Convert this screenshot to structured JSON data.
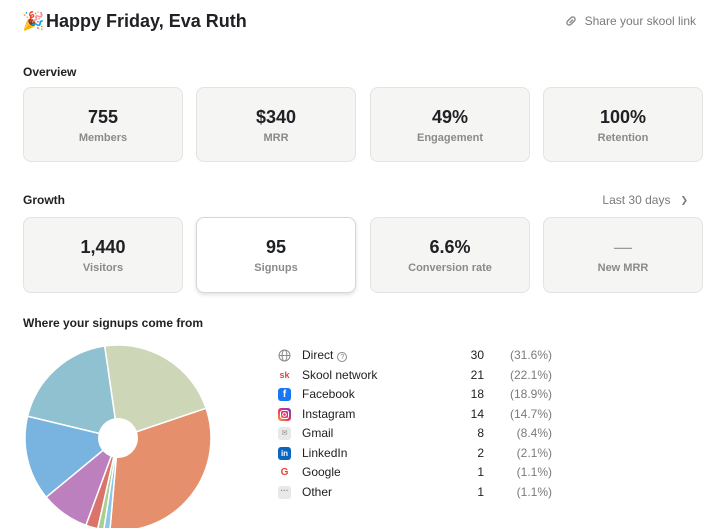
{
  "header": {
    "greeting": "Happy Friday, Eva Ruth",
    "share_link": "Share your skool link"
  },
  "overview": {
    "label": "Overview",
    "cards": [
      {
        "value": "755",
        "label": "Members"
      },
      {
        "value": "$340",
        "label": "MRR"
      },
      {
        "value": "49%",
        "label": "Engagement"
      },
      {
        "value": "100%",
        "label": "Retention"
      }
    ]
  },
  "growth": {
    "label": "Growth",
    "range": "Last 30 days",
    "cards": [
      {
        "value": "1,440",
        "label": "Visitors"
      },
      {
        "value": "95",
        "label": "Signups"
      },
      {
        "value": "6.6%",
        "label": "Conversion rate"
      },
      {
        "value": "—",
        "label": "New MRR"
      }
    ]
  },
  "sources": {
    "label": "Where your signups come from",
    "items": [
      {
        "name": "Direct",
        "count": "30",
        "pct": "(31.6%)",
        "icon": "globe-icon",
        "color": "#e68f6c"
      },
      {
        "name": "Skool network",
        "count": "21",
        "pct": "(22.1%)",
        "icon": "skool-icon",
        "color": "#cdd7b8"
      },
      {
        "name": "Facebook",
        "count": "18",
        "pct": "(18.9%)",
        "icon": "facebook-icon",
        "color": "#8fc1d1"
      },
      {
        "name": "Instagram",
        "count": "14",
        "pct": "(14.7%)",
        "icon": "instagram-icon",
        "color": "#79b4e0"
      },
      {
        "name": "Gmail",
        "count": "8",
        "pct": "(8.4%)",
        "icon": "gmail-icon",
        "color": "#bd80bf"
      },
      {
        "name": "LinkedIn",
        "count": "2",
        "pct": "(2.1%)",
        "icon": "linkedin-icon",
        "color": "#d9736c"
      },
      {
        "name": "Google",
        "count": "1",
        "pct": "(1.1%)",
        "icon": "google-icon",
        "color": "#a9cf8f"
      },
      {
        "name": "Other",
        "count": "1",
        "pct": "(1.1%)",
        "icon": "other-icon",
        "color": "#8ec6e6"
      }
    ]
  },
  "chart_data": {
    "type": "pie",
    "categories": [
      "Direct",
      "Skool network",
      "Facebook",
      "Instagram",
      "Gmail",
      "LinkedIn",
      "Google",
      "Other"
    ],
    "values": [
      30,
      21,
      18,
      14,
      8,
      2,
      1,
      1
    ],
    "colors": [
      "#e68f6c",
      "#cdd7b8",
      "#8fc1d1",
      "#79b4e0",
      "#bd80bf",
      "#d9736c",
      "#a9cf8f",
      "#8ec6e6"
    ],
    "donut_hole": true
  }
}
